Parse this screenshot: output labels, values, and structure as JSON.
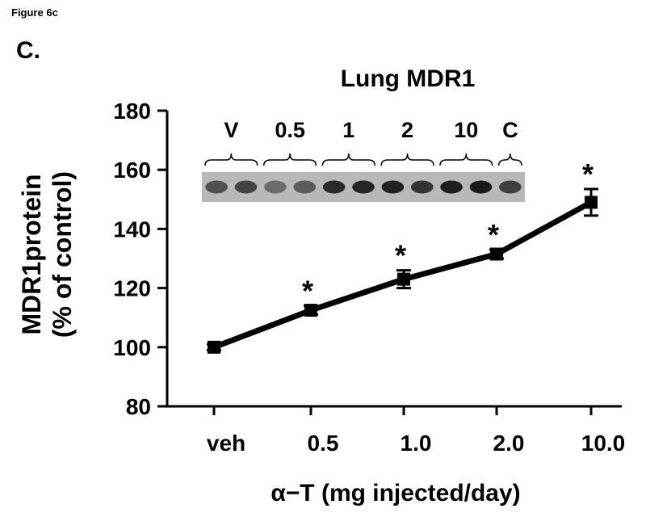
{
  "figure_label": "Figure 6c",
  "panel_label": "C.",
  "blot": {
    "group_labels": [
      "V",
      "0.5",
      "1",
      "2",
      "10",
      "C"
    ],
    "lanes": [
      {
        "group": 0,
        "intensity": 0.62
      },
      {
        "group": 0,
        "intensity": 0.7
      },
      {
        "group": 1,
        "intensity": 0.45
      },
      {
        "group": 1,
        "intensity": 0.55
      },
      {
        "group": 2,
        "intensity": 0.85
      },
      {
        "group": 2,
        "intensity": 0.88
      },
      {
        "group": 3,
        "intensity": 0.9
      },
      {
        "group": 3,
        "intensity": 0.8
      },
      {
        "group": 4,
        "intensity": 0.92
      },
      {
        "group": 4,
        "intensity": 0.95
      },
      {
        "group": 5,
        "intensity": 0.72
      }
    ],
    "colors": {
      "band": "#111111",
      "background": "#b8b8b8"
    }
  },
  "chart_data": {
    "type": "line",
    "title": "Lung MDR1",
    "xlabel": "α−T (mg injected/day)",
    "ylabel_lines": [
      "MDR1protein",
      "(% of control)"
    ],
    "categories": [
      "veh",
      "0.5",
      "1.0",
      "2.0",
      "10.0"
    ],
    "ylim": [
      80,
      180
    ],
    "yticks": [
      80,
      100,
      120,
      140,
      160,
      180
    ],
    "series": [
      {
        "values": [
          100,
          112.5,
          123,
          131.5,
          149
        ],
        "errors": [
          1.0,
          1.5,
          3.0,
          1.5,
          4.5
        ],
        "significance": [
          "",
          "*",
          "*",
          "*",
          "*"
        ]
      }
    ],
    "grid": false,
    "legend": "none",
    "line_color": "#000000"
  }
}
